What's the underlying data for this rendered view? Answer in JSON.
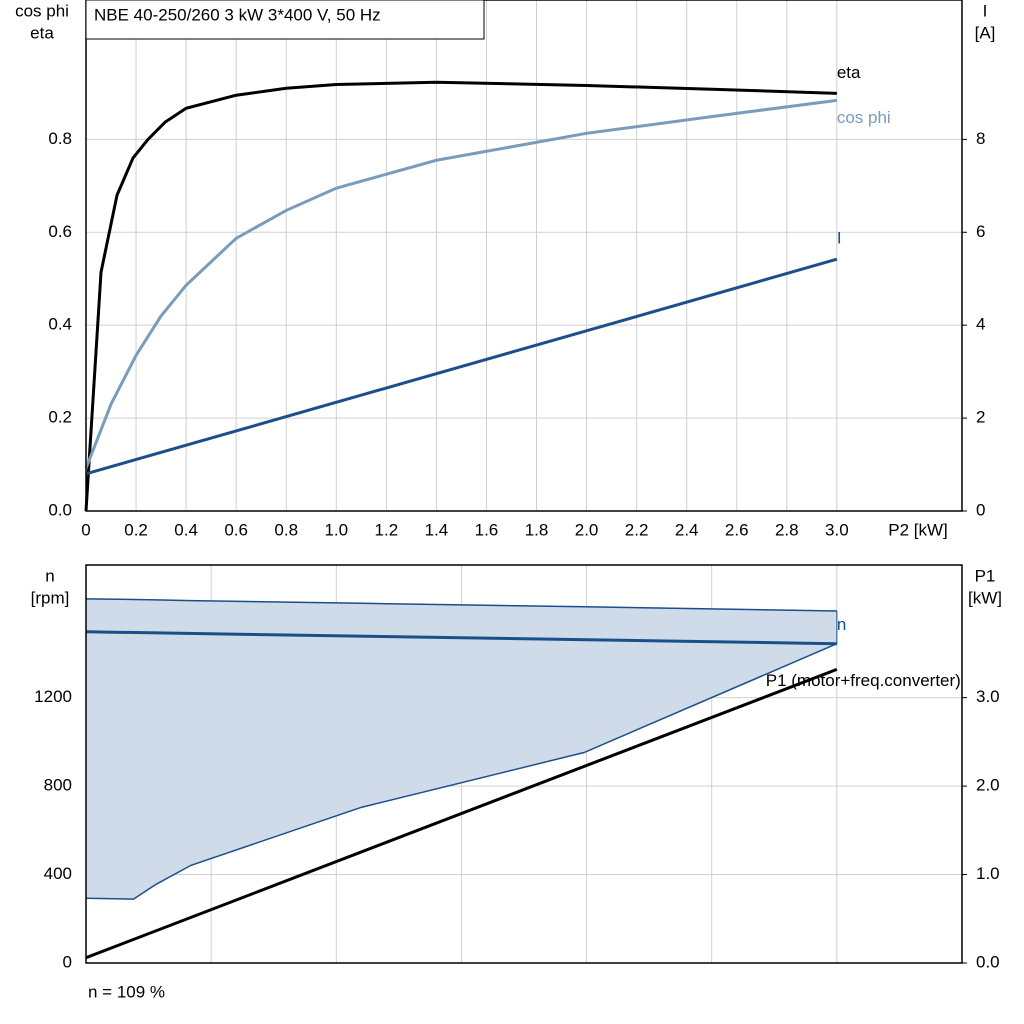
{
  "chart_data": [
    {
      "type": "line",
      "title": "NBE 40-250/260   3 kW   3*400 V, 50 Hz",
      "ylabel": [
        "cos phi",
        "eta"
      ],
      "y2label": [
        "I",
        "[A]"
      ],
      "xlabel": "P2 [kW]",
      "xlim": [
        0,
        3.5
      ],
      "ylim": [
        0,
        1.1
      ],
      "y2lim": [
        0,
        11
      ],
      "xticks": [
        0,
        0.2,
        0.4,
        0.6,
        0.8,
        {
          "value": 1,
          "label": "1.0"
        },
        1.2,
        1.4,
        1.6,
        1.8,
        {
          "value": 2,
          "label": "2.0"
        },
        2.2,
        2.4,
        2.6,
        2.8,
        {
          "value": 3,
          "label": "3.0"
        }
      ],
      "yticks": [
        {
          "value": 0,
          "label": "0.0"
        },
        0.2,
        0.4,
        0.6,
        0.8
      ],
      "y2ticks": [
        0,
        2,
        4,
        6,
        8
      ],
      "grid": true,
      "series": [
        {
          "name": "eta",
          "color": "#000000",
          "x": [
            0,
            0.06,
            0.124,
            0.188,
            0.248,
            0.316,
            0.4,
            0.6,
            0.8,
            1.0,
            1.4,
            2.0,
            2.5,
            3.0
          ],
          "values": [
            0,
            0.514,
            0.68,
            0.76,
            0.8,
            0.837,
            0.867,
            0.895,
            0.91,
            0.918,
            0.923,
            0.916,
            0.908,
            0.899
          ]
        },
        {
          "name": "cos phi",
          "color": "#7a9cbc",
          "x": [
            0,
            0.1,
            0.2,
            0.3,
            0.4,
            0.6,
            0.8,
            1.0,
            1.4,
            2.0,
            2.5,
            3.0
          ],
          "values": [
            0.092,
            0.23,
            0.335,
            0.42,
            0.486,
            0.587,
            0.647,
            0.695,
            0.755,
            0.813,
            0.849,
            0.884
          ]
        },
        {
          "name": "I",
          "color": "#1a4f8a",
          "axis": "y2",
          "x": [
            0,
            3.0
          ],
          "values": [
            0.8,
            5.42
          ]
        }
      ]
    },
    {
      "type": "line",
      "ylabel": [
        "n",
        "[rpm]"
      ],
      "y2label": [
        "P1",
        "[kW]"
      ],
      "annotation": "n = 109 %",
      "xlim": [
        0,
        3.5
      ],
      "ylim": [
        0,
        1800
      ],
      "y2lim": [
        0,
        4.5
      ],
      "xgrid": [
        0.5,
        1,
        1.5,
        2,
        2.5,
        3
      ],
      "yticks": [
        0,
        400,
        800,
        1200
      ],
      "y2ticks": [
        {
          "value": 0,
          "label": "0.0"
        },
        {
          "value": 1,
          "label": "1.0"
        },
        {
          "value": 2,
          "label": "2.0"
        },
        {
          "value": 3,
          "label": "3.0"
        }
      ],
      "grid": true,
      "range": {
        "color": "#cfdbe8",
        "edge": "#1a4f8a",
        "x": [
          0,
          0.19,
          0.28,
          0.42,
          1.1,
          1.99,
          3.0
        ],
        "upper": [
          1647,
          1644,
          1642,
          1639,
          1627,
          1611,
          1592
        ],
        "lower": [
          293,
          289,
          356,
          442,
          704,
          952,
          1444
        ]
      },
      "series": [
        {
          "name": "n",
          "color": "#1a4f8a",
          "x": [
            0,
            3.0
          ],
          "values": [
            1498,
            1444
          ]
        },
        {
          "name": "P1 (motor+freq.converter)",
          "color": "#000000",
          "axis": "y2",
          "x": [
            0,
            3.0
          ],
          "values": [
            0.06,
            3.32
          ]
        }
      ]
    }
  ]
}
